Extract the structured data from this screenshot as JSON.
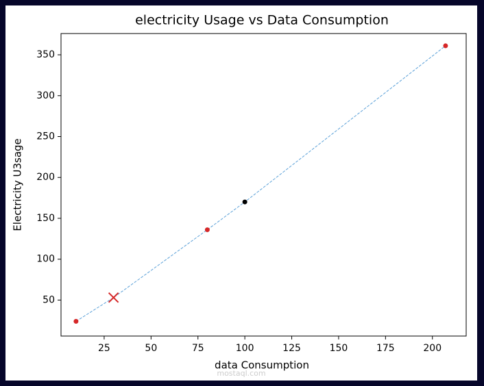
{
  "chart_data": {
    "type": "line",
    "title": "electricity Usage vs Data Consumption",
    "x_label": "data Consumption",
    "y_label": "Electricity U3sage",
    "x": [
      10,
      30,
      80,
      100,
      207
    ],
    "values": [
      24,
      53,
      136,
      170,
      361
    ],
    "color": "#5aa0d8",
    "line_style": "dashed",
    "point_colors": [
      "#d62728",
      "#d62728",
      "#d62728",
      "#000000",
      "#d62728"
    ],
    "point_markers": [
      "dot",
      "x",
      "dot",
      "dot",
      "dot"
    ],
    "xlim": [
      2,
      218
    ],
    "ylim": [
      6,
      376
    ],
    "xticks": [
      25,
      50,
      75,
      100,
      125,
      150,
      175,
      200
    ],
    "yticks": [
      50,
      100,
      150,
      200,
      250,
      300,
      350
    ],
    "watermark": "mostaql.com"
  }
}
